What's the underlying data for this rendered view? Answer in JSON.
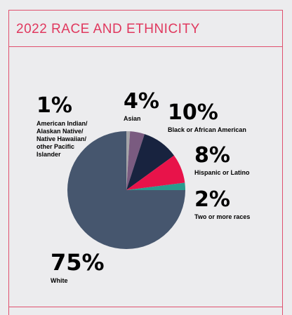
{
  "title": "2022 RACE AND ETHNICITY",
  "chart_data": {
    "type": "pie",
    "start_angle_deg": -90,
    "direction": "clockwise",
    "categories": [
      "American Indian/ Alaskan Native/ Native Hawaiian/ other Pacific Islander",
      "Asian",
      "Black or African American",
      "Hispanic or Latino",
      "Two or more races",
      "White"
    ],
    "values": [
      1,
      4,
      10,
      8,
      2,
      75
    ],
    "colors": [
      "#a5a5a8",
      "#7a5b80",
      "#18233f",
      "#e8134a",
      "#2a9b8e",
      "#46566e"
    ],
    "labels": [
      {
        "key": "native",
        "pct": "1%",
        "lines": [
          "American Indian/",
          "Alaskan Native/",
          "Native Hawaiian/",
          "other Pacific",
          "Islander"
        ],
        "color": "#a5a5a8"
      },
      {
        "key": "asian",
        "pct": "4%",
        "lines": [
          "Asian"
        ],
        "color": "#5b3560"
      },
      {
        "key": "black",
        "pct": "10%",
        "lines": [
          "Black or African American"
        ],
        "color": "#18233f"
      },
      {
        "key": "hispanic",
        "pct": "8%",
        "lines": [
          "Hispanic or Latino"
        ],
        "color": "#e8134a"
      },
      {
        "key": "two",
        "pct": "2%",
        "lines": [
          "Two or more races"
        ],
        "color": "#2a9b8e"
      },
      {
        "key": "white",
        "pct": "75%",
        "lines": [
          "White"
        ],
        "color": "#46566e"
      }
    ]
  }
}
